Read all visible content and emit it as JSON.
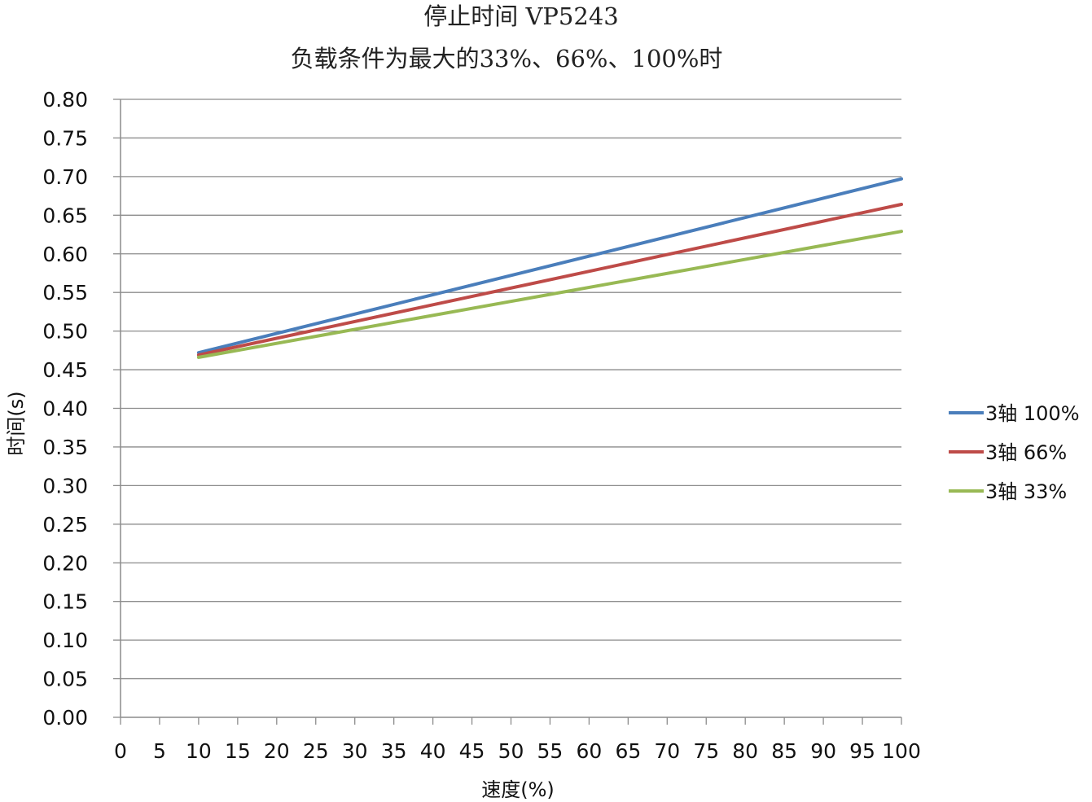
{
  "chart_data": {
    "type": "line",
    "title": "停止时间 VP5243",
    "subtitle": "负载条件为最大的33%、66%、100%时",
    "xlabel": "速度(%)",
    "ylabel": "时间(s)",
    "xlim": [
      0,
      100
    ],
    "ylim": [
      0,
      0.8
    ],
    "x_ticks": [
      "0",
      "5",
      "10",
      "15",
      "20",
      "25",
      "30",
      "35",
      "40",
      "45",
      "50",
      "55",
      "60",
      "65",
      "70",
      "75",
      "80",
      "85",
      "90",
      "95",
      "100"
    ],
    "y_ticks": [
      "0.00",
      "0.05",
      "0.10",
      "0.15",
      "0.20",
      "0.25",
      "0.30",
      "0.35",
      "0.40",
      "0.45",
      "0.50",
      "0.55",
      "0.60",
      "0.65",
      "0.70",
      "0.75",
      "0.80"
    ],
    "grid": true,
    "legend_position": "right",
    "series": [
      {
        "name": "3轴  100%",
        "color": "#4A7EBB",
        "x": [
          10,
          100
        ],
        "y": [
          0.472,
          0.697
        ]
      },
      {
        "name": "3轴  66%",
        "color": "#BE4B48",
        "x": [
          10,
          100
        ],
        "y": [
          0.469,
          0.664
        ]
      },
      {
        "name": "3轴  33%",
        "color": "#98B954",
        "x": [
          10,
          100
        ],
        "y": [
          0.466,
          0.629
        ]
      }
    ]
  }
}
